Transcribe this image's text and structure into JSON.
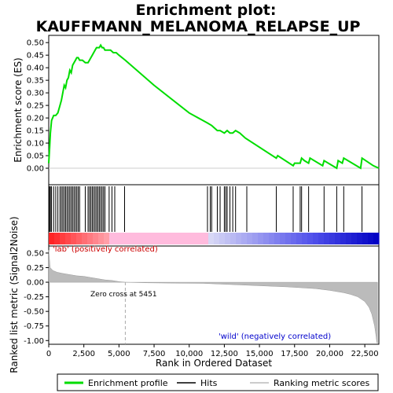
{
  "chart_data": {
    "type": "line",
    "title": "Enrichment plot:",
    "subtitle": "KAUFFMANN_MELANOMA_RELAPSE_UP",
    "x_range": [
      0,
      23500
    ],
    "x_ticks": [
      "0",
      "2,500",
      "5,000",
      "7,500",
      "10,000",
      "12,500",
      "15,000",
      "17,500",
      "20,000",
      "22,500"
    ],
    "x_tick_values": [
      0,
      2500,
      5000,
      7500,
      10000,
      12500,
      15000,
      17500,
      20000,
      22500
    ],
    "xlabel": "Rank in Ordered Dataset",
    "top_panel": {
      "ylabel": "Enrichment score (ES)",
      "ylim": [
        -0.05,
        0.51
      ],
      "y_ticks": [
        "0.00",
        "0.05",
        "0.10",
        "0.15",
        "0.20",
        "0.25",
        "0.30",
        "0.35",
        "0.40",
        "0.45",
        "0.50"
      ],
      "y_tick_values": [
        0,
        0.05,
        0.1,
        0.15,
        0.2,
        0.25,
        0.3,
        0.35,
        0.4,
        0.45,
        0.5
      ],
      "series": [
        {
          "name": "Enrichment profile",
          "color": "#00dd00",
          "x": [
            0,
            60,
            120,
            200,
            350,
            500,
            650,
            800,
            900,
            1000,
            1100,
            1200,
            1300,
            1400,
            1500,
            1600,
            1700,
            1800,
            1900,
            2000,
            2100,
            2200,
            2400,
            2600,
            2800,
            2900,
            3000,
            3100,
            3200,
            3300,
            3400,
            3500,
            3600,
            3700,
            3800,
            3900,
            4000,
            4200,
            4400,
            4600,
            4800,
            5000,
            5451,
            7500,
            10000,
            11300,
            11600,
            12000,
            12200,
            12500,
            12700,
            12900,
            13100,
            13300,
            13600,
            14000,
            16200,
            16300,
            17400,
            17500,
            17900,
            18000,
            18200,
            18500,
            18600,
            19500,
            19600,
            20500,
            20600,
            20900,
            21000,
            22200,
            22300,
            23100,
            23500
          ],
          "y": [
            0.02,
            0.08,
            0.14,
            0.19,
            0.21,
            0.21,
            0.22,
            0.25,
            0.27,
            0.3,
            0.33,
            0.32,
            0.35,
            0.36,
            0.39,
            0.38,
            0.41,
            0.42,
            0.43,
            0.44,
            0.44,
            0.43,
            0.43,
            0.42,
            0.42,
            0.43,
            0.44,
            0.45,
            0.46,
            0.47,
            0.48,
            0.48,
            0.48,
            0.49,
            0.48,
            0.48,
            0.47,
            0.47,
            0.47,
            0.46,
            0.46,
            0.45,
            0.43,
            0.33,
            0.22,
            0.18,
            0.17,
            0.15,
            0.15,
            0.14,
            0.15,
            0.14,
            0.14,
            0.15,
            0.14,
            0.12,
            0.04,
            0.05,
            0.01,
            0.02,
            0.02,
            0.04,
            0.03,
            0.02,
            0.04,
            0.01,
            0.03,
            0.0,
            0.03,
            0.02,
            0.04,
            0.0,
            0.04,
            0.01,
            0.0
          ]
        }
      ]
    },
    "hits": [
      60,
      120,
      200,
      350,
      500,
      650,
      800,
      900,
      1000,
      1100,
      1200,
      1300,
      1400,
      1500,
      1600,
      1700,
      1800,
      1900,
      2000,
      2100,
      2200,
      2600,
      2800,
      2900,
      3000,
      3100,
      3200,
      3300,
      3400,
      3500,
      3600,
      3700,
      3800,
      3900,
      4000,
      4300,
      4500,
      4700,
      5400,
      11300,
      11500,
      11600,
      12000,
      12200,
      12500,
      12600,
      12700,
      12900,
      13100,
      13300,
      14100,
      16200,
      17400,
      17900,
      18000,
      18500,
      19600,
      20500,
      21000,
      22300
    ],
    "bottom_panel": {
      "ylabel": "Ranked list metric (Signal2Noise)",
      "ylim": [
        -1.05,
        0.58
      ],
      "y_ticks": [
        "0.50",
        "0.25",
        "0.00",
        "-0.25",
        "-0.50",
        "-0.75",
        "-1.00"
      ],
      "y_tick_values": [
        0.5,
        0.25,
        0,
        -0.25,
        -0.5,
        -0.75,
        -1.0
      ],
      "metric_x": [
        0,
        100,
        300,
        600,
        1000,
        1500,
        2000,
        2500,
        3000,
        3500,
        4000,
        4500,
        5000,
        5451,
        7000,
        9000,
        11000,
        13000,
        15000,
        17000,
        19000,
        20000,
        21000,
        21500,
        22000,
        22500,
        22800,
        23000,
        23200,
        23300,
        23350,
        23400
      ],
      "metric_y": [
        0.55,
        0.25,
        0.2,
        0.17,
        0.15,
        0.13,
        0.11,
        0.1,
        0.08,
        0.06,
        0.04,
        0.03,
        0.01,
        0.0,
        -0.01,
        -0.015,
        -0.02,
        -0.04,
        -0.06,
        -0.08,
        -0.11,
        -0.14,
        -0.18,
        -0.21,
        -0.25,
        -0.33,
        -0.43,
        -0.55,
        -0.75,
        -0.92,
        -1.02,
        -1.05
      ],
      "annotations": {
        "pos_label": "'lab' (positively correlated)",
        "neg_label": "'wild' (negatively correlated)",
        "zero_cross": "Zero cross at 5451",
        "zero_cross_x": 5451
      }
    },
    "legend": {
      "placement": "bottom",
      "items": [
        {
          "label": "Enrichment profile",
          "color": "#00dd00",
          "kind": "line"
        },
        {
          "label": "Hits",
          "color": "#000000",
          "kind": "line"
        },
        {
          "label": "Ranking metric scores",
          "color": "#bbbbbb",
          "kind": "line"
        }
      ]
    },
    "colors": {
      "grid_bar_positive": "#ff0000",
      "grid_bar_neutral": "#ffbbdd",
      "grid_bar_negative": "#0000cc",
      "metric_fill": "#bbbbbb",
      "pos_label": "#cc0000",
      "neg_label": "#0000cc"
    }
  }
}
